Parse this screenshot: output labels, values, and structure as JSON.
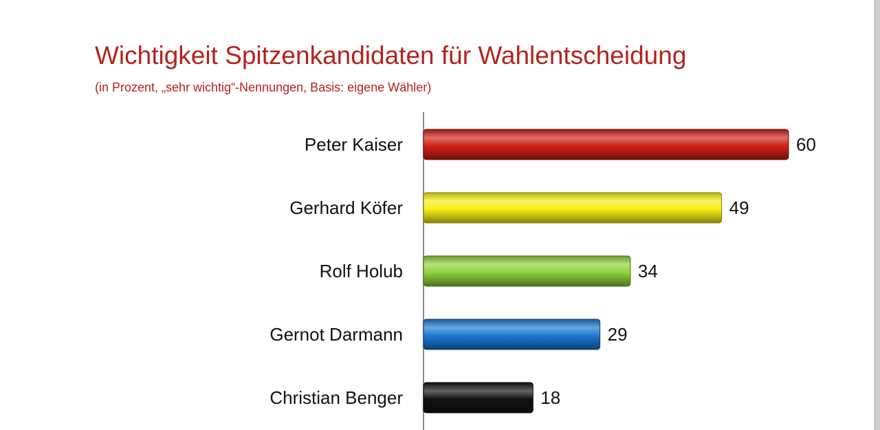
{
  "chart_data": {
    "type": "bar",
    "orientation": "horizontal",
    "title": "Wichtigkeit Spitzenkandidaten für Wahlentscheidung",
    "subtitle": "(in Prozent, „sehr wichtig“-Nennungen, Basis: eigene Wähler)",
    "categories": [
      "Peter Kaiser",
      "Gerhard Köfer",
      "Rolf Holub",
      "Gernot Darmann",
      "Christian Benger"
    ],
    "values": [
      60,
      49,
      34,
      29,
      18
    ],
    "data_labels": [
      "60",
      "49",
      "34",
      "29",
      "18"
    ],
    "colors": [
      "#d01f16",
      "#f6ef12",
      "#8fd13a",
      "#1a78d0",
      "#121212"
    ],
    "xlim": [
      0,
      60
    ],
    "grid": false,
    "legend": "none",
    "xlabel": "",
    "ylabel": ""
  }
}
